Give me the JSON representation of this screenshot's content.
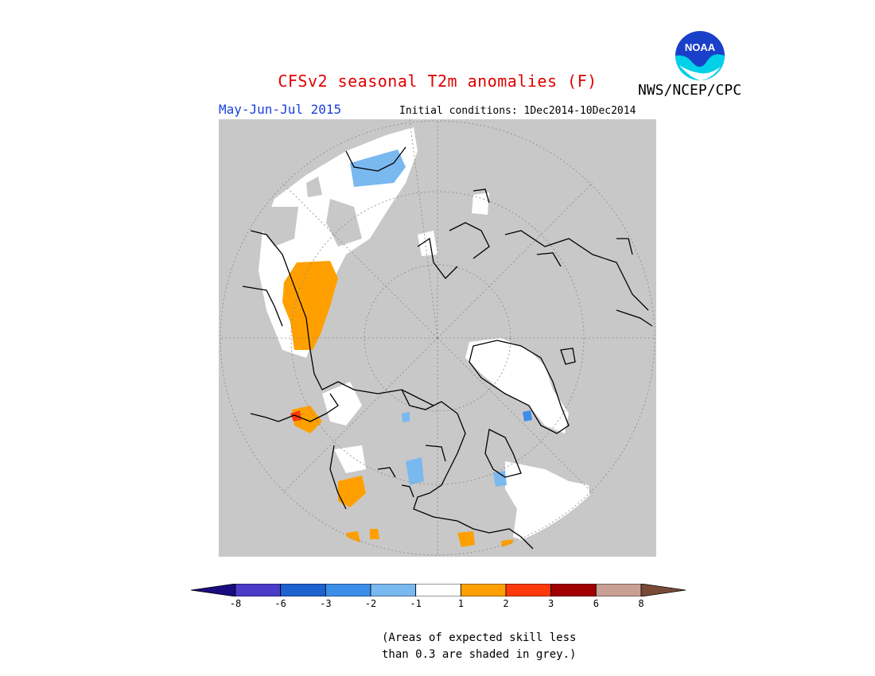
{
  "title": "CFSv2 seasonal T2m anomalies (F)",
  "agency": "NWS/NCEP/CPC",
  "logo_text": "NOAA",
  "period": "May-Jun-Jul 2015",
  "initial_conditions": "Initial conditions: 1Dec2014-10Dec2014",
  "legend": {
    "labels": [
      "-8",
      "-6",
      "-3",
      "-2",
      "-1",
      "1",
      "2",
      "3",
      "6",
      "8"
    ],
    "colors": [
      "#1a0c80",
      "#4a3cc8",
      "#1e62d0",
      "#3c8ee8",
      "#7ab8f0",
      "#ffffff",
      "#ffa000",
      "#ff3a0a",
      "#a00000",
      "#c8a094",
      "#7a4a38"
    ]
  },
  "note_line1": "(Areas of expected skill less",
  "note_line2": "than 0.3 are shaded in grey.)",
  "colors": {
    "no_skill_grey": "#c8c8c8",
    "near_normal": "#ffffff",
    "warm_1_2": "#ffa000",
    "warm_2_3": "#ff3a0a",
    "cool_1_2": "#7ab8f0",
    "cool_2_3": "#3c8ee8",
    "title_red": "#e00000",
    "period_blue": "#1a3fe0"
  }
}
